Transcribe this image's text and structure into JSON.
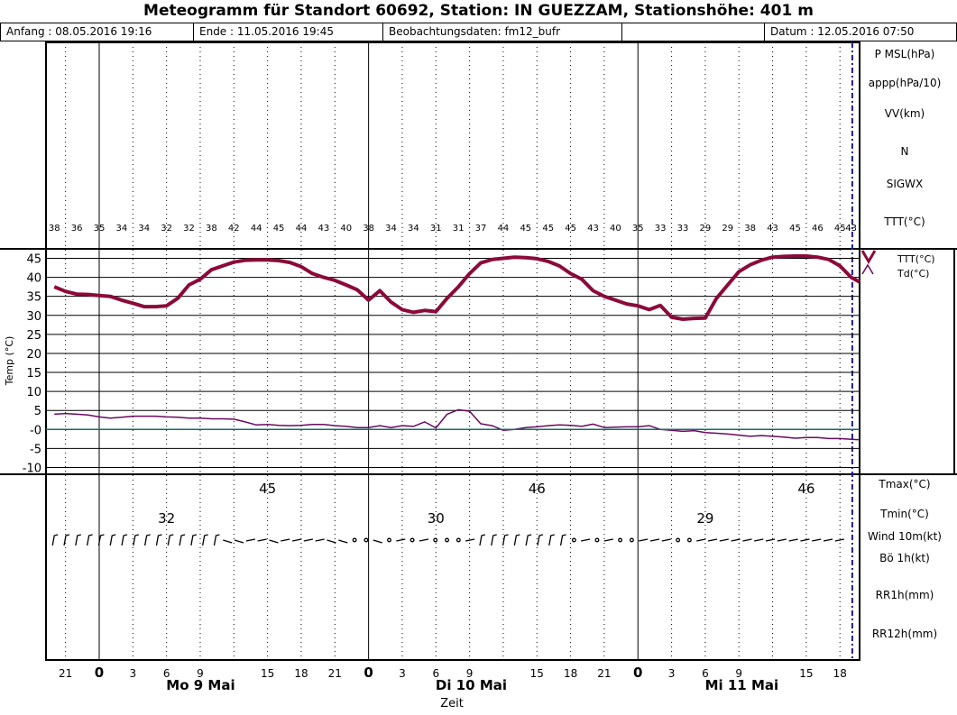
{
  "header": {
    "title": "Meteogramm für Standort 60692, Station: IN GUEZZAM, Stationshöhe: 401 m",
    "start": "Anfang : 08.05.2016 19:16",
    "end": "Ende : 11.05.2016 19:45",
    "source": "Beobachtungsdaten: fm12_bufr",
    "date": "Datum : 12.05.2016 07:50"
  },
  "top_panel": {
    "labels": [
      "P MSL(hPa)",
      "appp(hPa/10)",
      "VV(km)",
      "N",
      "SIGWX",
      "TTT(°C)"
    ]
  },
  "bottom_panel": {
    "labels": [
      "Tmax(°C)",
      "Tmin(°C)",
      "Wind 10m(kt)",
      "Bö 1h(kt)",
      "RR1h(mm)",
      "RR12h(mm)"
    ],
    "tmax": [
      "45",
      "46",
      "46"
    ],
    "tmin": [
      "32",
      "30",
      "29"
    ]
  },
  "axis": {
    "xlabel": "Zeit",
    "hour_ticks": [
      "21",
      "0",
      "3",
      "6",
      "9",
      "15",
      "18",
      "21",
      "0",
      "3",
      "6",
      "9",
      "15",
      "18",
      "21",
      "0",
      "3",
      "6",
      "9",
      "15",
      "18"
    ],
    "days": [
      "Mo 9 Mai",
      "Di 10 Mai",
      "Mi 11 Mai"
    ]
  },
  "chart_data": {
    "type": "line",
    "ylabel": "Temp (°C)",
    "ylim": [
      -10,
      47
    ],
    "y_ticks": [
      "45",
      "40",
      "35",
      "30",
      "25",
      "20",
      "15",
      "10",
      "5",
      "-0",
      "-5",
      "-10"
    ],
    "x_unit": "hours since 08.05.2016 00:00",
    "xlim": [
      19.26,
      91.75
    ],
    "ttt_labels": [
      "38",
      "36",
      "35",
      "34",
      "34",
      "32",
      "32",
      "38",
      "42",
      "44",
      "45",
      "44",
      "43",
      "40",
      "38",
      "34",
      "34",
      "31",
      "31",
      "37",
      "44",
      "45",
      "45",
      "45",
      "43",
      "40",
      "35",
      "33",
      "33",
      "29",
      "29",
      "38",
      "43",
      "45",
      "46",
      "45",
      "43"
    ],
    "series": [
      {
        "name": "TTT(°C)",
        "color": "#8b0a3a",
        "x": [
          20,
          21,
          22,
          23,
          24,
          25,
          26,
          27,
          28,
          29,
          30,
          31,
          32,
          33,
          34,
          35,
          36,
          37,
          38,
          39,
          40,
          41,
          42,
          43,
          44,
          45,
          46,
          47,
          48,
          49,
          50,
          51,
          52,
          53,
          54,
          55,
          56,
          57,
          58,
          59,
          60,
          61,
          62,
          63,
          64,
          65,
          66,
          67,
          68,
          69,
          70,
          71,
          72,
          73,
          74,
          75,
          76,
          77,
          78,
          79,
          80,
          81,
          82,
          83,
          84,
          85,
          86,
          87,
          88,
          89,
          90,
          91,
          91.75
        ],
        "values": [
          37.5,
          36.3,
          35.6,
          35.5,
          35.2,
          35,
          34,
          33.2,
          32.3,
          32.3,
          32.5,
          34.5,
          38,
          39.5,
          42,
          43,
          44,
          44.5,
          44.6,
          44.6,
          44.4,
          43.9,
          42.8,
          41,
          40,
          39.2,
          38,
          36.7,
          34,
          36.5,
          33.5,
          31.5,
          30.8,
          31.3,
          31,
          34.5,
          37.5,
          41,
          43.8,
          44.7,
          45,
          45.3,
          45.2,
          44.9,
          44.2,
          43,
          41,
          39.5,
          36.5,
          35,
          34,
          33,
          32.5,
          31.5,
          32.6,
          29.5,
          29,
          29.2,
          29.3,
          34.5,
          38,
          41.5,
          43.3,
          44.5,
          45.3,
          45.5,
          45.6,
          45.6,
          45.3,
          44.7,
          43,
          40,
          38.8
        ]
      },
      {
        "name": "Td(°C)",
        "color": "#6a0a5e",
        "x": [
          20,
          21,
          22,
          23,
          24,
          25,
          26,
          27,
          28,
          29,
          30,
          31,
          32,
          33,
          34,
          35,
          36,
          37,
          38,
          39,
          40,
          41,
          42,
          43,
          44,
          45,
          46,
          47,
          48,
          49,
          50,
          51,
          52,
          53,
          54,
          55,
          56,
          57,
          58,
          59,
          60,
          61,
          62,
          63,
          64,
          65,
          66,
          67,
          68,
          69,
          70,
          71,
          72,
          73,
          74,
          75,
          76,
          77,
          78,
          79,
          80,
          81,
          82,
          83,
          84,
          85,
          86,
          87,
          88,
          89,
          90,
          91,
          91.75
        ],
        "values": [
          4,
          4.2,
          4,
          3.8,
          3.3,
          3,
          3.2,
          3.5,
          3.5,
          3.5,
          3.3,
          3.2,
          3,
          3,
          2.8,
          2.8,
          2.7,
          2,
          1.2,
          1.3,
          1.1,
          1,
          1.1,
          1.3,
          1.3,
          1,
          0.8,
          0.5,
          0.5,
          1,
          0.5,
          1,
          0.8,
          2,
          0.4,
          4,
          5.2,
          4.8,
          1.5,
          1,
          -0.2,
          0,
          0.5,
          0.7,
          1,
          1.2,
          1.1,
          0.8,
          1.4,
          0.5,
          0.6,
          0.7,
          0.7,
          1,
          0,
          -0.2,
          -0.5,
          -0.3,
          -0.8,
          -1,
          -1.2,
          -1.5,
          -1.8,
          -1.6,
          -1.8,
          -2,
          -2.3,
          -2.1,
          -2.1,
          -2.4,
          -2.4,
          -2.6,
          -2.7
        ]
      },
      {
        "name": "0-line",
        "color": "#0e6e6e",
        "x": [
          19.26,
          91.75
        ],
        "values": [
          0,
          0
        ]
      }
    ],
    "wind_symbols": "/ / / / / / / / / / / / / / / ~ ~ - - ~ - - - - ~ ~ o o ~ o - o - o o o - / / / / / / / / o - o - o o - - - o o - - - - - - - - - - - - -"
  }
}
